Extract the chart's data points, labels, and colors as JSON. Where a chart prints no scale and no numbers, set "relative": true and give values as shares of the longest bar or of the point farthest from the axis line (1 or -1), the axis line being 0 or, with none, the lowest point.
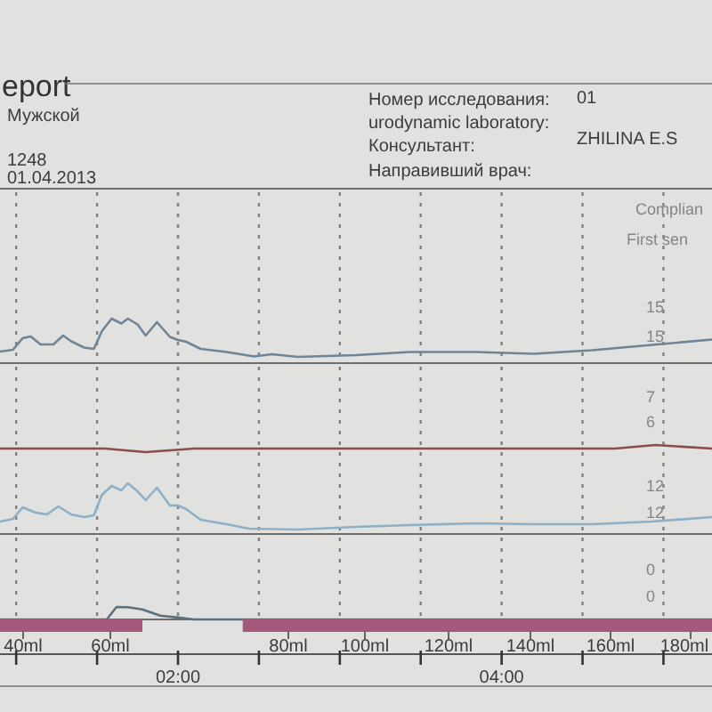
{
  "chart_data": [
    {
      "type": "other",
      "title": "eport",
      "annotations": [
        "Мужской",
        "1248",
        "01.04.2013",
        "Номер исследования:",
        "01",
        "urodynamic laboratory:",
        "Консультант:",
        "ZHILINA E.S",
        "Направивший врач:"
      ]
    },
    {
      "type": "line",
      "relative": true,
      "xlim": [
        0.9,
        5.3
      ],
      "xticks": [
        1,
        1.5,
        2,
        2.5,
        3,
        3.5,
        4,
        4.5,
        5
      ],
      "grid": "x",
      "tick_labels": false,
      "series": [
        {
          "color": "#6f8597",
          "x": [
            0.9,
            0.98,
            1.04,
            1.09,
            1.15,
            1.23,
            1.29,
            1.34,
            1.42,
            1.48,
            1.53,
            1.59,
            1.65,
            1.69,
            1.75,
            1.8,
            1.87,
            1.95,
            2,
            2.05,
            2.14,
            2.3,
            2.47,
            2.58,
            2.74,
            3.1,
            3.43,
            3.84,
            4.2,
            4.56,
            4.93,
            5.3
          ],
          "values": [
            0.26,
            0.3,
            0.56,
            0.6,
            0.42,
            0.42,
            0.62,
            0.49,
            0.35,
            0.32,
            0.72,
            1,
            0.89,
            1,
            0.87,
            0.62,
            0.92,
            0.59,
            0.52,
            0.48,
            0.32,
            0.25,
            0.15,
            0.2,
            0.14,
            0.18,
            0.25,
            0.25,
            0.21,
            0.29,
            0.41,
            0.53
          ]
        }
      ],
      "annotations": [
        "Complian",
        "First sen",
        "15",
        "15"
      ]
    },
    {
      "type": "line",
      "relative": true,
      "xlim": [
        0.9,
        5.3
      ],
      "xticks": [
        1,
        1.5,
        2,
        2.5,
        3,
        3.5,
        4,
        4.5,
        5
      ],
      "grid": "x",
      "tick_labels": false,
      "series": [
        {
          "color": "#8b4d4d",
          "x": [
            0.9,
            1.55,
            1.8,
            2.1,
            3.1,
            4.7,
            4.95,
            5.3
          ],
          "values": [
            0.96,
            0.96,
            0.92,
            0.96,
            0.96,
            0.96,
            1,
            0.96
          ]
        },
        {
          "color": "#8db0c8",
          "x": [
            0.9,
            0.98,
            1.04,
            1.12,
            1.19,
            1.26,
            1.34,
            1.42,
            1.48,
            1.53,
            1.59,
            1.65,
            1.69,
            1.75,
            1.8,
            1.87,
            1.95,
            2,
            2.05,
            2.14,
            2.3,
            2.44,
            2.74,
            3.1,
            3.43,
            3.84,
            4.2,
            4.56,
            4.93,
            5.3
          ],
          "values": [
            0.14,
            0.17,
            0.3,
            0.24,
            0.22,
            0.31,
            0.22,
            0.19,
            0.21,
            0.44,
            0.54,
            0.49,
            0.57,
            0.48,
            0.38,
            0.52,
            0.32,
            0.32,
            0.28,
            0.16,
            0.11,
            0.06,
            0.05,
            0.08,
            0.1,
            0.12,
            0.11,
            0.11,
            0.14,
            0.19
          ]
        }
      ],
      "annotations": [
        "7",
        "6",
        "12",
        "12"
      ]
    },
    {
      "type": "line",
      "relative": true,
      "xlim": [
        0.9,
        5.3
      ],
      "xticks": [
        {
          "value": 1,
          "label": null
        },
        {
          "value": 1.5,
          "label": null
        },
        {
          "value": 2,
          "label": "02:00"
        },
        {
          "value": 2.5,
          "label": null
        },
        {
          "value": 3,
          "label": null
        },
        {
          "value": 3.5,
          "label": null
        },
        {
          "value": 4,
          "label": "04:00"
        },
        {
          "value": 4.5,
          "label": null
        },
        {
          "value": 5,
          "label": null
        }
      ],
      "grid": "x",
      "series": [
        {
          "color": "#5d6f7a",
          "x": [
            0.9,
            1.56,
            1.59,
            1.62,
            1.69,
            1.78,
            1.89,
            2,
            2.1,
            5.3
          ],
          "values": [
            0,
            0,
            0.5,
            1,
            0.98,
            0.8,
            0.3,
            0.15,
            0,
            0
          ]
        },
        {
          "type": "area",
          "color": "#a5587a",
          "x": [
            0.9,
            1.78
          ],
          "values": [
            -1,
            -1
          ]
        },
        {
          "type": "area",
          "color": "#a5587a",
          "x": [
            2.4,
            5.3
          ],
          "values": [
            -1,
            -1
          ]
        }
      ],
      "annotations": [
        "0",
        "0",
        "40ml",
        "60ml",
        "80ml",
        "100ml",
        "120ml",
        "140ml",
        "160ml",
        "180ml"
      ]
    }
  ]
}
